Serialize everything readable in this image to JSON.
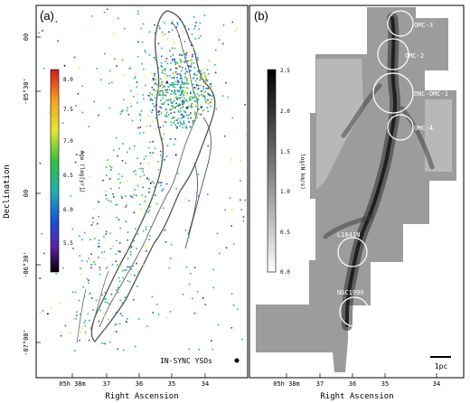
{
  "figure": {
    "y_axis_label": "Declination",
    "x_axis_label": "Right Ascension",
    "dec_ticks": [
      "-07°00'",
      "-06°30'",
      "00",
      "-05°30'",
      "00"
    ],
    "ra_ticks": [
      "05h 38m",
      "37",
      "36",
      "35",
      "34"
    ]
  },
  "panel_a": {
    "label": "(a)",
    "colorbar_title": "Age (log[yr])",
    "colorbar_ticks": [
      "8.0",
      "7.5",
      "7.0",
      "6.5",
      "6.0",
      "5.5"
    ],
    "colorbar_colors": [
      "#d7191c",
      "#f5a020",
      "#e8e830",
      "#33c040",
      "#20b0b0",
      "#1a50d8",
      "#6020a0",
      "#000000"
    ],
    "legend_label": "IN-SYNC YSOs"
  },
  "panel_b": {
    "label": "(b)",
    "colorbar_title": "log(N km/s)",
    "colorbar_ticks": [
      "2.5",
      "2.0",
      "1.5",
      "1.0",
      "0.5",
      "0.0"
    ],
    "regions": [
      "OMC-3",
      "OMC-2",
      "ONC-OMC-1",
      "OMC-4",
      "L1641N",
      "NGC1999"
    ],
    "scalebar_label": "1pc"
  }
}
